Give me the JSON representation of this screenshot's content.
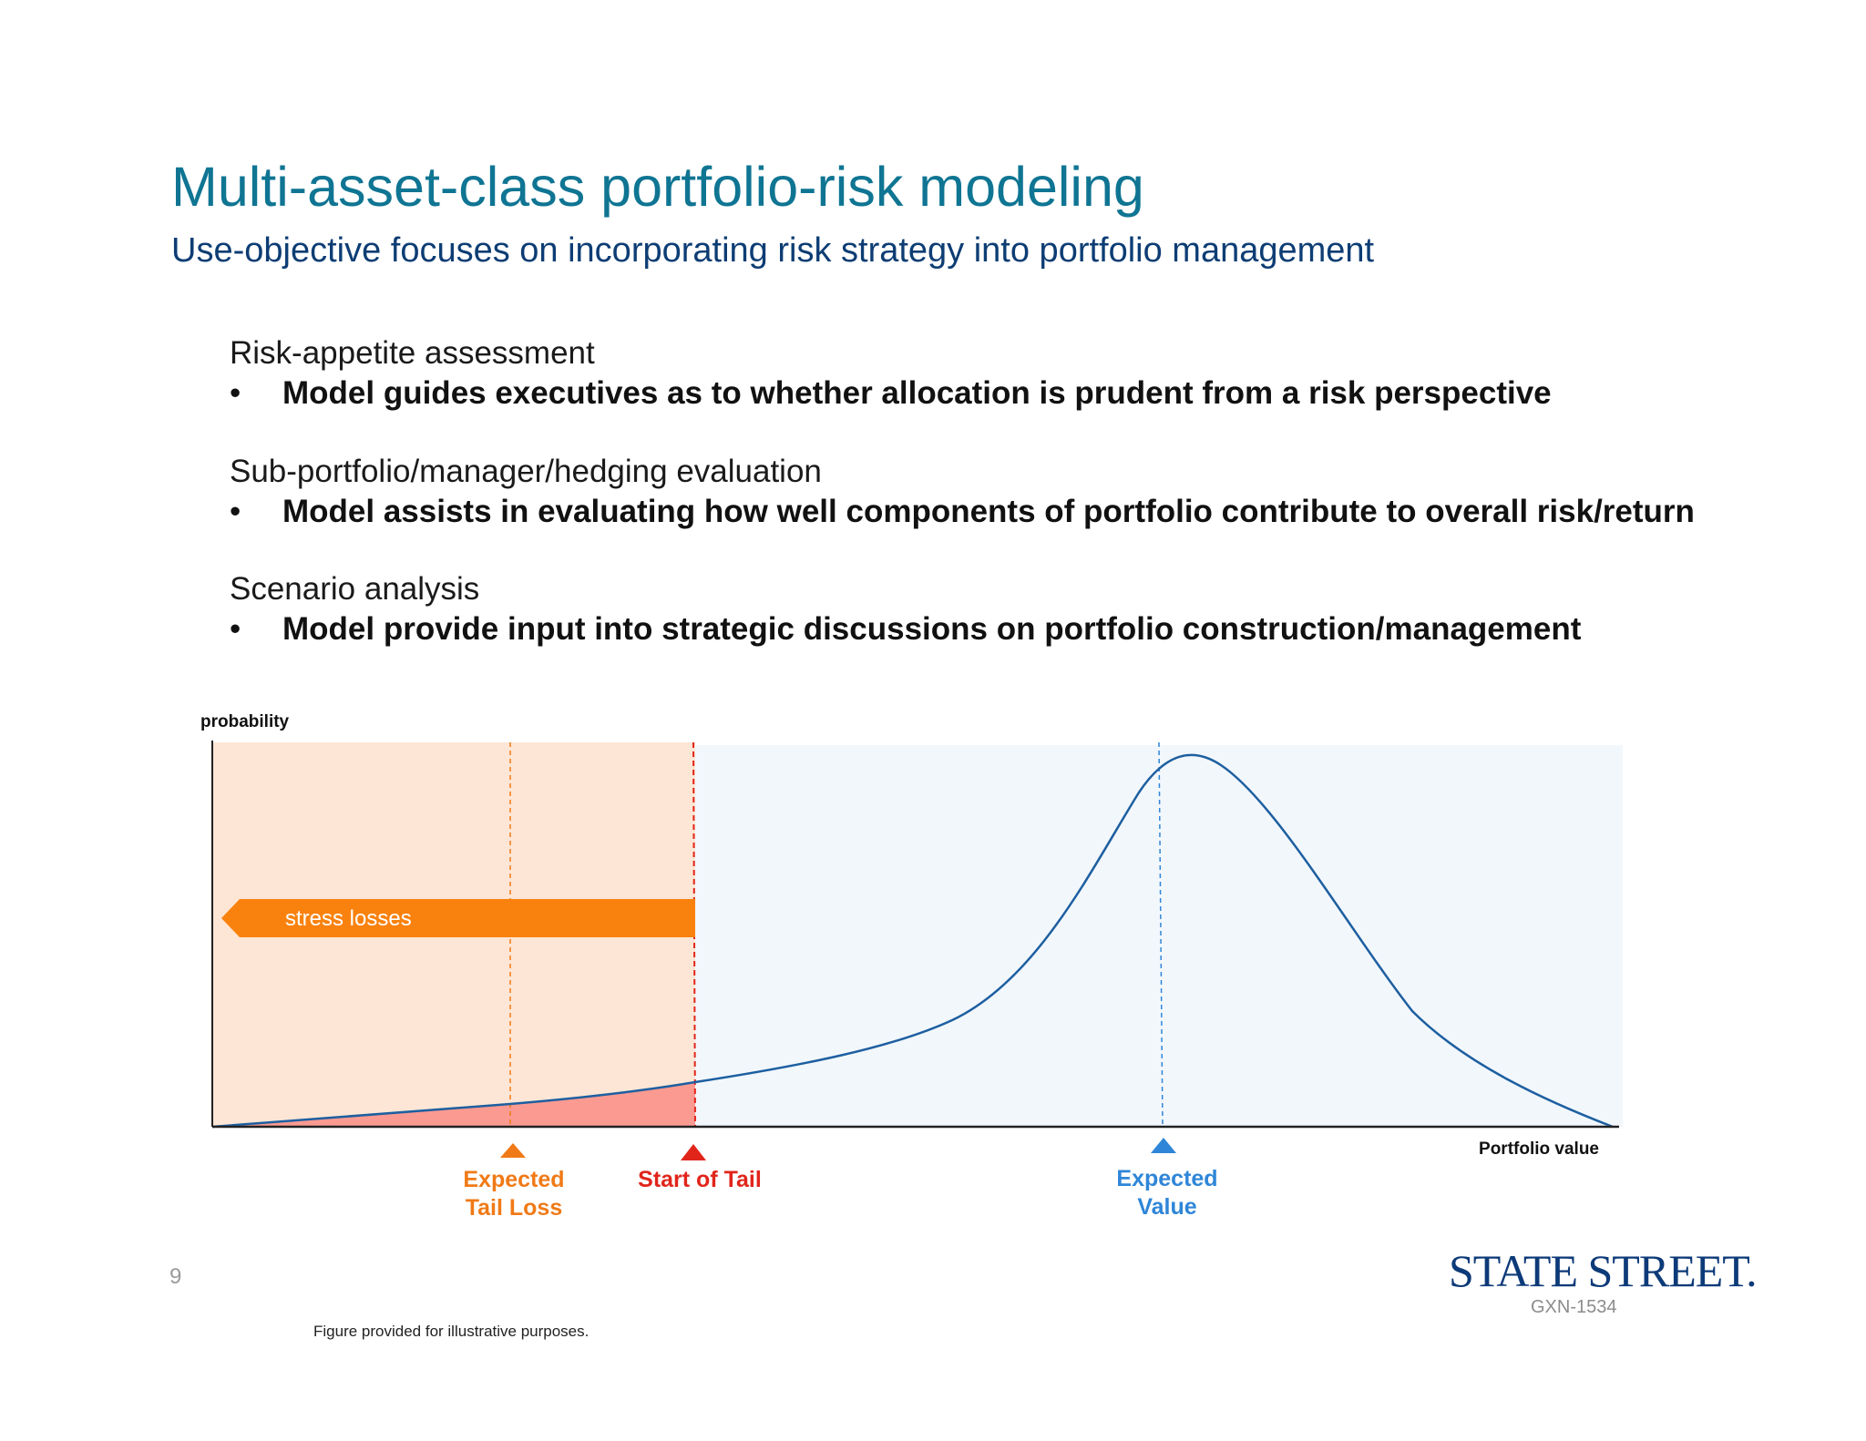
{
  "slide": {
    "title": "Multi-asset-class portfolio-risk modeling",
    "subtitle": "Use-objective focuses on incorporating risk strategy into portfolio management",
    "sections": [
      {
        "heading": "Risk-appetite assessment",
        "bullet": "Model guides executives as to whether allocation is prudent from a risk perspective"
      },
      {
        "heading": "Sub-portfolio/manager/hedging evaluation",
        "bullet": "Model assists in evaluating how well components of portfolio contribute to overall risk/return"
      },
      {
        "heading": "Scenario analysis",
        "bullet": "Model provide input into strategic discussions on portfolio construction/management"
      }
    ],
    "bullet_glyph": "•",
    "page_number": "9",
    "footnote": "Figure provided for illustrative purposes.",
    "logo_text": "STATE STREET.",
    "doc_code": "GXN-1534"
  },
  "diagram": {
    "y_axis_label": "probability",
    "x_axis_label": "Portfolio value",
    "arrow_label": "stress losses",
    "markers": {
      "expected_tail_loss": {
        "line1": "Expected",
        "line2": "Tail Loss"
      },
      "start_of_tail": {
        "line1": "Start of Tail"
      },
      "expected_value": {
        "line1": "Expected",
        "line2": "Value"
      }
    },
    "colors": {
      "tail_region": "#fde6d5",
      "body_region": "#f2f7fc",
      "arrow": "#f9820f",
      "tail_fill": "#fb9a91",
      "curve": "#1d5fa0",
      "expected_tail_loss": "#f07a17",
      "start_of_tail": "#e1251b",
      "expected_value": "#2f86d8",
      "axis": "#222222"
    }
  }
}
